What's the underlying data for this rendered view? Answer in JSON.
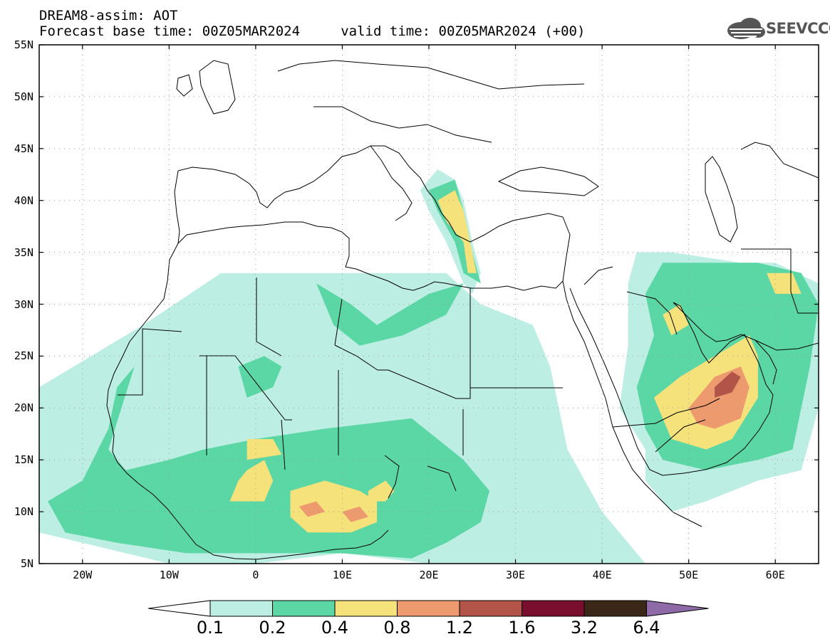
{
  "title": {
    "line1": "DREAM8-assim: AOT",
    "line2": "Forecast base time: 00Z05MAR2024     valid time: 00Z05MAR2024 (+00)"
  },
  "logo": {
    "text": "SEEVCCC",
    "icon": "cloud-logo-icon"
  },
  "axes": {
    "lat_range": [
      5,
      55
    ],
    "lon_range": [
      -25,
      65
    ],
    "lat_labels": [
      "55N",
      "50N",
      "45N",
      "40N",
      "35N",
      "30N",
      "25N",
      "20N",
      "15N",
      "10N",
      "5N"
    ],
    "lat_values": [
      55,
      50,
      45,
      40,
      35,
      30,
      25,
      20,
      15,
      10,
      5
    ],
    "lon_labels": [
      "20W",
      "10W",
      "0",
      "10E",
      "20E",
      "30E",
      "40E",
      "50E",
      "60E"
    ],
    "lon_values": [
      -20,
      -10,
      0,
      10,
      20,
      30,
      40,
      50,
      60
    ],
    "grid": "dotted"
  },
  "colorbar": {
    "labels": [
      "0.1",
      "0.2",
      "0.4",
      "0.8",
      "1.2",
      "1.6",
      "3.2",
      "6.4"
    ],
    "colors": [
      "#ffffff",
      "#bdeee3",
      "#5bd6a5",
      "#f6e27a",
      "#ec9a6e",
      "#b25548",
      "#7a0e2e",
      "#3b2717",
      "#8e6aa6"
    ]
  },
  "colors": {
    "level1": "#bdeee3",
    "level2": "#5bd6a5",
    "level3": "#f6e27a",
    "level4": "#ec9a6e",
    "level5": "#b25548"
  },
  "aot_fields": {
    "level1": [
      [
        [
          -25,
          22
        ],
        [
          -19,
          25
        ],
        [
          -13,
          28
        ],
        [
          -4,
          33
        ],
        [
          4,
          33
        ],
        [
          12,
          33
        ],
        [
          22,
          33
        ],
        [
          26,
          30
        ],
        [
          32,
          28
        ],
        [
          34,
          24
        ],
        [
          36,
          16
        ],
        [
          40,
          10
        ],
        [
          45,
          5
        ],
        [
          20,
          5
        ],
        [
          10,
          6
        ],
        [
          0,
          5
        ],
        [
          -10,
          5
        ],
        [
          -25,
          8
        ]
      ],
      [
        [
          43,
          32
        ],
        [
          44,
          35
        ],
        [
          48,
          35
        ],
        [
          56,
          34
        ],
        [
          60,
          34
        ],
        [
          65,
          32
        ],
        [
          65,
          20
        ],
        [
          63,
          14
        ],
        [
          58,
          13
        ],
        [
          52,
          11
        ],
        [
          48,
          10
        ],
        [
          45,
          13
        ],
        [
          45,
          16
        ],
        [
          42,
          20
        ],
        [
          43,
          26
        ]
      ],
      [
        [
          19,
          41
        ],
        [
          21,
          43
        ],
        [
          23,
          42
        ],
        [
          24,
          40
        ],
        [
          25,
          36
        ],
        [
          26,
          33
        ],
        [
          25,
          31
        ],
        [
          24,
          32
        ],
        [
          22,
          36
        ],
        [
          20,
          39
        ]
      ]
    ],
    "level2": [
      [
        [
          -24,
          11
        ],
        [
          -20,
          13
        ],
        [
          -17,
          18
        ],
        [
          -16,
          22
        ],
        [
          -14,
          24
        ],
        [
          -17,
          16
        ],
        [
          -15,
          14
        ],
        [
          -10,
          15
        ],
        [
          -6,
          16
        ],
        [
          0,
          17
        ],
        [
          8,
          18
        ],
        [
          18,
          19
        ],
        [
          21,
          17
        ],
        [
          24,
          15
        ],
        [
          27,
          12
        ],
        [
          26,
          9
        ],
        [
          22,
          7
        ],
        [
          18,
          5.5
        ],
        [
          10,
          6
        ],
        [
          2,
          6
        ],
        [
          -8,
          6
        ],
        [
          -16,
          7
        ],
        [
          -22,
          8
        ]
      ],
      [
        [
          45,
          31
        ],
        [
          47,
          34
        ],
        [
          53,
          34
        ],
        [
          58,
          34
        ],
        [
          63,
          33
        ],
        [
          65,
          30
        ],
        [
          64,
          24
        ],
        [
          63,
          20
        ],
        [
          62,
          16
        ],
        [
          58,
          15
        ],
        [
          52,
          14
        ],
        [
          47,
          15
        ],
        [
          45,
          18
        ],
        [
          44,
          22
        ],
        [
          46,
          27
        ]
      ],
      [
        [
          7,
          32
        ],
        [
          11,
          30
        ],
        [
          14,
          28
        ],
        [
          16,
          29
        ],
        [
          20,
          31
        ],
        [
          24,
          32
        ],
        [
          22,
          29
        ],
        [
          17,
          27
        ],
        [
          12,
          26
        ],
        [
          9,
          28
        ]
      ],
      [
        [
          -2,
          24
        ],
        [
          1,
          25
        ],
        [
          3,
          24
        ],
        [
          2,
          22
        ],
        [
          -1,
          21
        ]
      ],
      [
        [
          20,
          41
        ],
        [
          23,
          42
        ],
        [
          24,
          39
        ],
        [
          25,
          35
        ],
        [
          26,
          32
        ],
        [
          24,
          33
        ],
        [
          23,
          36
        ],
        [
          21,
          39
        ]
      ]
    ],
    "level3": [
      [
        [
          -1,
          14
        ],
        [
          1,
          15
        ],
        [
          2,
          13
        ],
        [
          1,
          11
        ],
        [
          -3,
          11
        ],
        [
          -2,
          13
        ]
      ],
      [
        [
          4,
          12
        ],
        [
          8,
          13
        ],
        [
          12,
          12
        ],
        [
          14,
          11
        ],
        [
          14,
          9
        ],
        [
          11,
          8
        ],
        [
          6,
          8
        ],
        [
          4,
          9.5
        ]
      ],
      [
        [
          -1,
          17
        ],
        [
          2,
          17
        ],
        [
          3,
          15.5
        ],
        [
          -1,
          15
        ]
      ],
      [
        [
          13,
          12
        ],
        [
          15,
          13
        ],
        [
          16,
          12
        ],
        [
          15,
          11
        ],
        [
          13,
          11
        ]
      ],
      [
        [
          46,
          21
        ],
        [
          49,
          23
        ],
        [
          53,
          25
        ],
        [
          57,
          27
        ],
        [
          58,
          25
        ],
        [
          58,
          21
        ],
        [
          55,
          17
        ],
        [
          52,
          16
        ],
        [
          48,
          17
        ],
        [
          47,
          19
        ]
      ],
      [
        [
          47,
          29
        ],
        [
          49,
          30
        ],
        [
          50,
          28
        ],
        [
          48,
          27
        ]
      ],
      [
        [
          21,
          40
        ],
        [
          23,
          41
        ],
        [
          24,
          39
        ],
        [
          25,
          35
        ],
        [
          25.5,
          33
        ],
        [
          24.5,
          33
        ],
        [
          24,
          36
        ],
        [
          22,
          38
        ]
      ],
      [
        [
          59,
          33
        ],
        [
          62,
          33
        ],
        [
          63,
          31
        ],
        [
          60,
          31
        ]
      ]
    ],
    "level4": [
      [
        [
          5,
          10.5
        ],
        [
          7,
          11
        ],
        [
          8,
          10
        ],
        [
          6,
          9.5
        ]
      ],
      [
        [
          10,
          10
        ],
        [
          12,
          10.5
        ],
        [
          13,
          9.5
        ],
        [
          11,
          9
        ]
      ],
      [
        [
          50,
          20
        ],
        [
          53,
          23
        ],
        [
          56,
          24
        ],
        [
          57,
          22
        ],
        [
          56,
          19
        ],
        [
          53,
          18
        ],
        [
          51,
          18.5
        ]
      ]
    ],
    "level5": [
      [
        [
          53,
          22
        ],
        [
          55,
          23.5
        ],
        [
          56,
          23
        ],
        [
          55,
          21.5
        ],
        [
          53,
          21
        ]
      ]
    ]
  }
}
